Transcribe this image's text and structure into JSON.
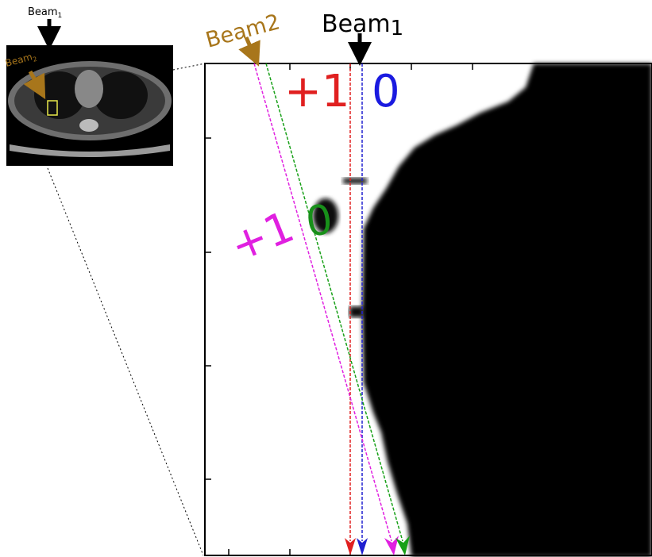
{
  "inset": {
    "beam1": {
      "text": "Beam",
      "sub": "1"
    },
    "beam2": {
      "text": "Beam",
      "sub": "2"
    }
  },
  "main": {
    "beam1": {
      "text": "Beam",
      "sub": "1"
    },
    "beam2": "Beam2",
    "labels": [
      "+1",
      "0",
      "+1",
      "0"
    ]
  }
}
